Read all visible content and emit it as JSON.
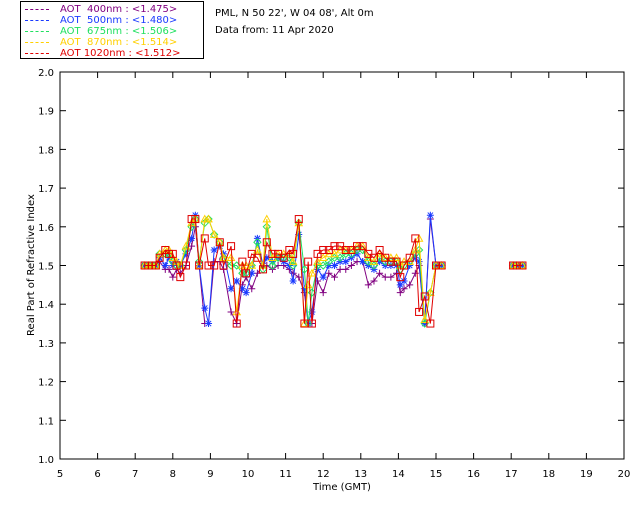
{
  "header": {
    "site": "PML, N 50 22', W 04 08', Alt 0m",
    "date": "Data from: 11 Apr 2020"
  },
  "legend": [
    {
      "label": "AOT  400nm : <1.475>",
      "color": "#800080"
    },
    {
      "label": "AOT  500nm : <1.480>",
      "color": "#1a3aff"
    },
    {
      "label": "AOT  675nm : <1.506>",
      "color": "#20e060"
    },
    {
      "label": "AOT  870nm : <1.514>",
      "color": "#ffd000"
    },
    {
      "label": "AOT 1020nm : <1.512>",
      "color": "#e00000"
    }
  ],
  "chart_data": {
    "type": "scatter",
    "xlabel": "Time (GMT)",
    "ylabel": "Real Part of Refractive Index",
    "xlim": [
      5,
      20
    ],
    "ylim": [
      1.0,
      2.0
    ],
    "xticks": [
      "5",
      "6",
      "7",
      "8",
      "9",
      "10",
      "11",
      "12",
      "13",
      "14",
      "15",
      "16",
      "17",
      "18",
      "19",
      "20"
    ],
    "yticks": [
      "1.0",
      "1.1",
      "1.2",
      "1.3",
      "1.4",
      "1.5",
      "1.6",
      "1.7",
      "1.8",
      "1.9",
      "2.0"
    ],
    "grid": false,
    "legend_position": "top-left, outside plot",
    "series": [
      {
        "name": "AOT  400nm : <1.475>",
        "color": "#800080",
        "marker": "plus",
        "x": [
          7.25,
          7.35,
          7.45,
          7.55,
          7.65,
          7.8,
          7.9,
          8.0,
          8.1,
          8.2,
          8.35,
          8.5,
          8.6,
          8.7,
          8.85,
          8.95,
          9.1,
          9.25,
          9.35,
          9.55,
          9.7,
          9.85,
          9.95,
          10.1,
          10.25,
          10.4,
          10.5,
          10.65,
          10.8,
          10.95,
          11.1,
          11.2,
          11.35,
          11.5,
          11.6,
          11.7,
          11.85,
          12.0,
          12.15,
          12.3,
          12.45,
          12.6,
          12.75,
          12.9,
          13.05,
          13.2,
          13.35,
          13.5,
          13.65,
          13.8,
          13.95,
          14.05,
          14.15,
          14.3,
          14.45,
          14.55,
          14.7,
          14.85,
          15.0,
          15.15,
          17.05,
          17.15,
          17.3
        ],
        "y": [
          1.5,
          1.5,
          1.5,
          1.5,
          1.51,
          1.49,
          1.49,
          1.47,
          1.49,
          1.48,
          1.5,
          1.55,
          1.6,
          1.5,
          1.35,
          1.35,
          1.51,
          1.51,
          1.49,
          1.38,
          1.35,
          1.45,
          1.47,
          1.44,
          1.48,
          1.5,
          1.5,
          1.49,
          1.5,
          1.5,
          1.49,
          1.48,
          1.47,
          1.43,
          1.35,
          1.35,
          1.46,
          1.43,
          1.48,
          1.47,
          1.49,
          1.49,
          1.5,
          1.51,
          1.51,
          1.45,
          1.46,
          1.48,
          1.47,
          1.47,
          1.48,
          1.43,
          1.44,
          1.45,
          1.48,
          1.5,
          1.35,
          1.62,
          1.5,
          1.5,
          1.5,
          1.5,
          1.5
        ]
      },
      {
        "name": "AOT  500nm : <1.480>",
        "color": "#1a3aff",
        "marker": "star",
        "x": [
          7.25,
          7.35,
          7.45,
          7.55,
          7.65,
          7.8,
          7.9,
          8.0,
          8.1,
          8.2,
          8.35,
          8.5,
          8.6,
          8.7,
          8.85,
          8.95,
          9.1,
          9.25,
          9.35,
          9.55,
          9.7,
          9.85,
          9.95,
          10.1,
          10.25,
          10.4,
          10.5,
          10.65,
          10.8,
          10.95,
          11.1,
          11.2,
          11.35,
          11.5,
          11.6,
          11.7,
          11.85,
          12.0,
          12.15,
          12.3,
          12.45,
          12.6,
          12.75,
          12.9,
          13.05,
          13.2,
          13.35,
          13.5,
          13.65,
          13.8,
          13.95,
          14.05,
          14.15,
          14.3,
          14.45,
          14.55,
          14.7,
          14.85,
          15.0,
          15.15,
          17.05,
          17.15,
          17.3
        ],
        "y": [
          1.5,
          1.5,
          1.5,
          1.5,
          1.52,
          1.5,
          1.52,
          1.5,
          1.51,
          1.5,
          1.53,
          1.57,
          1.63,
          1.5,
          1.39,
          1.35,
          1.54,
          1.55,
          1.53,
          1.44,
          1.46,
          1.44,
          1.43,
          1.48,
          1.57,
          1.5,
          1.52,
          1.51,
          1.52,
          1.51,
          1.5,
          1.46,
          1.58,
          1.44,
          1.35,
          1.38,
          1.49,
          1.47,
          1.5,
          1.5,
          1.51,
          1.51,
          1.52,
          1.53,
          1.51,
          1.5,
          1.49,
          1.51,
          1.5,
          1.5,
          1.5,
          1.45,
          1.46,
          1.5,
          1.52,
          1.51,
          1.35,
          1.63,
          1.5,
          1.5,
          1.5,
          1.5,
          1.5
        ]
      },
      {
        "name": "AOT  675nm : <1.506>",
        "color": "#20e060",
        "marker": "diamond",
        "x": [
          7.25,
          7.35,
          7.45,
          7.55,
          7.65,
          7.8,
          7.9,
          8.0,
          8.1,
          8.2,
          8.35,
          8.5,
          8.6,
          8.7,
          8.85,
          8.95,
          9.1,
          9.25,
          9.35,
          9.55,
          9.7,
          9.85,
          9.95,
          10.1,
          10.25,
          10.4,
          10.5,
          10.65,
          10.8,
          10.95,
          11.1,
          11.2,
          11.35,
          11.5,
          11.6,
          11.7,
          11.85,
          12.0,
          12.15,
          12.3,
          12.45,
          12.6,
          12.75,
          12.9,
          13.05,
          13.2,
          13.35,
          13.5,
          13.65,
          13.8,
          13.95,
          14.05,
          14.15,
          14.3,
          14.45,
          14.55,
          14.7,
          14.85,
          15.0,
          15.15,
          17.05,
          17.15,
          17.3
        ],
        "y": [
          1.5,
          1.5,
          1.5,
          1.5,
          1.53,
          1.53,
          1.53,
          1.51,
          1.5,
          1.5,
          1.54,
          1.6,
          1.62,
          1.51,
          1.61,
          1.62,
          1.58,
          1.56,
          1.52,
          1.5,
          1.5,
          1.48,
          1.48,
          1.5,
          1.56,
          1.49,
          1.6,
          1.5,
          1.52,
          1.52,
          1.52,
          1.5,
          1.61,
          1.49,
          1.35,
          1.43,
          1.5,
          1.5,
          1.51,
          1.52,
          1.52,
          1.53,
          1.53,
          1.54,
          1.54,
          1.51,
          1.5,
          1.52,
          1.51,
          1.51,
          1.51,
          1.49,
          1.5,
          1.51,
          1.53,
          1.54,
          1.35,
          1.43,
          1.5,
          1.5,
          1.5,
          1.5,
          1.5
        ]
      },
      {
        "name": "AOT  870nm : <1.514>",
        "color": "#ffd000",
        "marker": "triangle",
        "x": [
          7.25,
          7.35,
          7.45,
          7.55,
          7.65,
          7.8,
          7.9,
          8.0,
          8.1,
          8.2,
          8.35,
          8.5,
          8.6,
          8.7,
          8.85,
          8.95,
          9.1,
          9.25,
          9.35,
          9.55,
          9.7,
          9.85,
          9.95,
          10.1,
          10.25,
          10.4,
          10.5,
          10.65,
          10.8,
          10.95,
          11.1,
          11.2,
          11.35,
          11.5,
          11.6,
          11.7,
          11.85,
          12.0,
          12.15,
          12.3,
          12.45,
          12.6,
          12.75,
          12.9,
          13.05,
          13.2,
          13.35,
          13.5,
          13.65,
          13.8,
          13.95,
          14.05,
          14.15,
          14.3,
          14.45,
          14.55,
          14.7,
          14.85,
          15.0,
          15.15,
          17.05,
          17.15,
          17.3
        ],
        "y": [
          1.5,
          1.5,
          1.5,
          1.5,
          1.53,
          1.54,
          1.54,
          1.52,
          1.51,
          1.5,
          1.55,
          1.61,
          1.62,
          1.5,
          1.62,
          1.62,
          1.58,
          1.56,
          1.52,
          1.52,
          1.38,
          1.5,
          1.5,
          1.5,
          1.54,
          1.5,
          1.62,
          1.52,
          1.53,
          1.53,
          1.53,
          1.51,
          1.61,
          1.35,
          1.45,
          1.48,
          1.51,
          1.52,
          1.53,
          1.53,
          1.54,
          1.54,
          1.54,
          1.55,
          1.55,
          1.52,
          1.51,
          1.53,
          1.52,
          1.52,
          1.52,
          1.5,
          1.51,
          1.51,
          1.54,
          1.57,
          1.36,
          1.43,
          1.5,
          1.5,
          1.5,
          1.5,
          1.5
        ]
      },
      {
        "name": "AOT 1020nm : <1.512>",
        "color": "#e00000",
        "marker": "square",
        "x": [
          7.25,
          7.35,
          7.45,
          7.55,
          7.65,
          7.8,
          7.9,
          8.0,
          8.1,
          8.2,
          8.35,
          8.5,
          8.6,
          8.7,
          8.85,
          8.95,
          9.1,
          9.25,
          9.35,
          9.55,
          9.7,
          9.85,
          9.95,
          10.1,
          10.25,
          10.4,
          10.5,
          10.65,
          10.8,
          10.95,
          11.1,
          11.2,
          11.35,
          11.5,
          11.6,
          11.7,
          11.85,
          12.0,
          12.15,
          12.3,
          12.45,
          12.6,
          12.75,
          12.9,
          13.05,
          13.2,
          13.35,
          13.5,
          13.65,
          13.8,
          13.95,
          14.05,
          14.15,
          14.3,
          14.45,
          14.55,
          14.7,
          14.85,
          15.0,
          15.15,
          17.05,
          17.15,
          17.3
        ],
        "y": [
          1.5,
          1.5,
          1.5,
          1.5,
          1.52,
          1.54,
          1.53,
          1.53,
          1.5,
          1.47,
          1.5,
          1.62,
          1.62,
          1.5,
          1.57,
          1.5,
          1.5,
          1.56,
          1.5,
          1.55,
          1.35,
          1.51,
          1.48,
          1.53,
          1.52,
          1.49,
          1.56,
          1.53,
          1.53,
          1.52,
          1.54,
          1.53,
          1.62,
          1.35,
          1.51,
          1.35,
          1.53,
          1.54,
          1.54,
          1.55,
          1.55,
          1.54,
          1.54,
          1.55,
          1.55,
          1.53,
          1.52,
          1.54,
          1.52,
          1.51,
          1.51,
          1.47,
          1.5,
          1.52,
          1.57,
          1.38,
          1.42,
          1.35,
          1.5,
          1.5,
          1.5,
          1.5,
          1.5
        ]
      }
    ]
  }
}
